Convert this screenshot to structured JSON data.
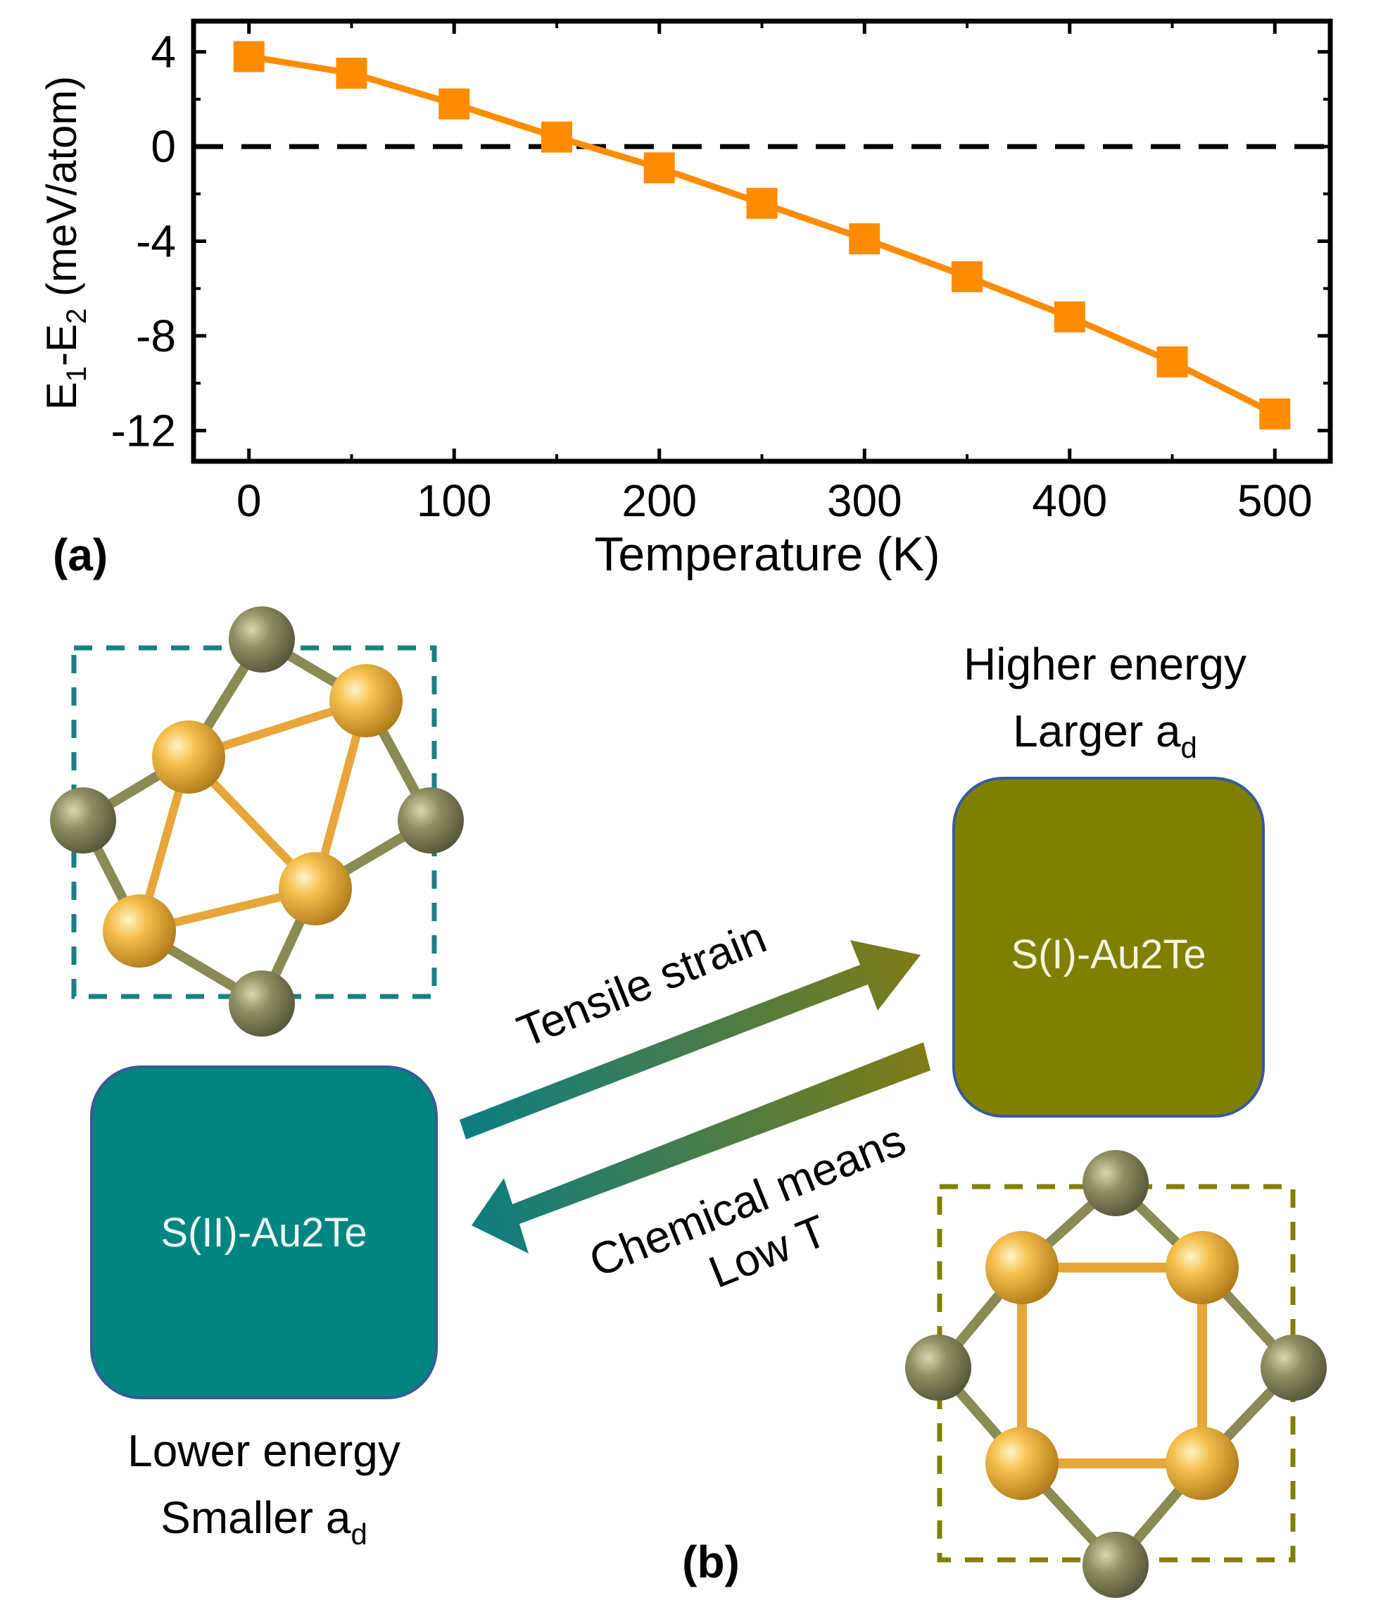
{
  "chart_data": {
    "type": "line",
    "x": [
      0,
      50,
      100,
      150,
      200,
      250,
      300,
      350,
      400,
      450,
      500
    ],
    "series": [
      {
        "name": "E1-E2",
        "values": [
          3.8,
          3.1,
          1.8,
          0.4,
          -0.9,
          -2.4,
          -3.9,
          -5.5,
          -7.2,
          -9.1,
          -11.3
        ],
        "color": "#ff8c00"
      }
    ],
    "xlabel": "Temperature (K)",
    "ylabel_main": "E",
    "ylabel_sub1": "1",
    "ylabel_mid": "-E",
    "ylabel_sub2": "2",
    "ylabel_tail": " (meV/atom)",
    "xlim": [
      -27,
      527
    ],
    "ylim": [
      -13.3,
      5.3
    ],
    "xticks": [
      0,
      100,
      200,
      300,
      400,
      500
    ],
    "xticklabels": [
      "0",
      "100",
      "200",
      "300",
      "400",
      "500"
    ],
    "yticks": [
      4,
      0,
      -4,
      -8,
      -12
    ],
    "yticklabels": [
      "4",
      "0",
      "-4",
      "-8",
      "-12"
    ],
    "reference_line": 0,
    "panel_label": "(a)"
  },
  "diagram": {
    "panel_label": "(b)",
    "box_left_label": "S(II)-Au2Te",
    "box_right_label": "S(I)-Au2Te",
    "box_left_color": "#008580",
    "box_right_color": "#808000",
    "arrow_forward_label": "Tensile strain",
    "arrow_back_label_1": "Chemical means",
    "arrow_back_label_2": "Low T",
    "right_caption_1": "Higher energy",
    "right_caption_2_main": "Larger a",
    "right_caption_2_sub": "d",
    "left_caption_1": "Lower energy",
    "left_caption_2_main": "Smaller a",
    "left_caption_2_sub": "d",
    "atom_au_color": "#f2b33d",
    "atom_te_color": "#8a8a5a"
  }
}
